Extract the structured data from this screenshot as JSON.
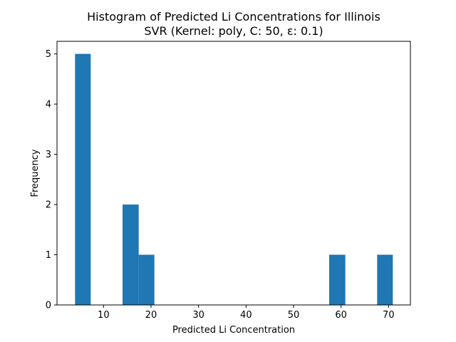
{
  "chart_data": {
    "type": "bar",
    "title": "Histogram of Predicted Li Concentrations for Illinois",
    "subtitle": "SVR (Kernel: poly, C: 50, ε: 0.1)",
    "xlabel": "Predicted Li Concentration",
    "ylabel": "Frequency",
    "xlim": [
      0.2,
      74.6
    ],
    "ylim": [
      0,
      5.25
    ],
    "xticks": [
      10,
      20,
      30,
      40,
      50,
      60,
      70
    ],
    "yticks": [
      0,
      1,
      2,
      3,
      4,
      5
    ],
    "bar_color": "#1f77b4",
    "grid": false,
    "bins": [
      {
        "x0": 4.0,
        "x1": 7.3,
        "count": 5
      },
      {
        "x0": 7.3,
        "x1": 10.7,
        "count": 0
      },
      {
        "x0": 10.7,
        "x1": 14.0,
        "count": 0
      },
      {
        "x0": 14.0,
        "x1": 17.4,
        "count": 2
      },
      {
        "x0": 17.4,
        "x1": 20.7,
        "count": 1
      },
      {
        "x0": 20.7,
        "x1": 24.1,
        "count": 0
      },
      {
        "x0": 24.1,
        "x1": 27.4,
        "count": 0
      },
      {
        "x0": 27.4,
        "x1": 30.8,
        "count": 0
      },
      {
        "x0": 30.8,
        "x1": 34.1,
        "count": 0
      },
      {
        "x0": 34.1,
        "x1": 37.4,
        "count": 0
      },
      {
        "x0": 37.4,
        "x1": 40.8,
        "count": 0
      },
      {
        "x0": 40.8,
        "x1": 44.1,
        "count": 0
      },
      {
        "x0": 44.1,
        "x1": 47.5,
        "count": 0
      },
      {
        "x0": 47.5,
        "x1": 50.8,
        "count": 0
      },
      {
        "x0": 50.8,
        "x1": 54.2,
        "count": 0
      },
      {
        "x0": 54.2,
        "x1": 57.5,
        "count": 0
      },
      {
        "x0": 57.5,
        "x1": 60.9,
        "count": 1
      },
      {
        "x0": 60.9,
        "x1": 64.2,
        "count": 0
      },
      {
        "x0": 64.2,
        "x1": 67.6,
        "count": 0
      },
      {
        "x0": 67.6,
        "x1": 70.9,
        "count": 1
      }
    ]
  }
}
